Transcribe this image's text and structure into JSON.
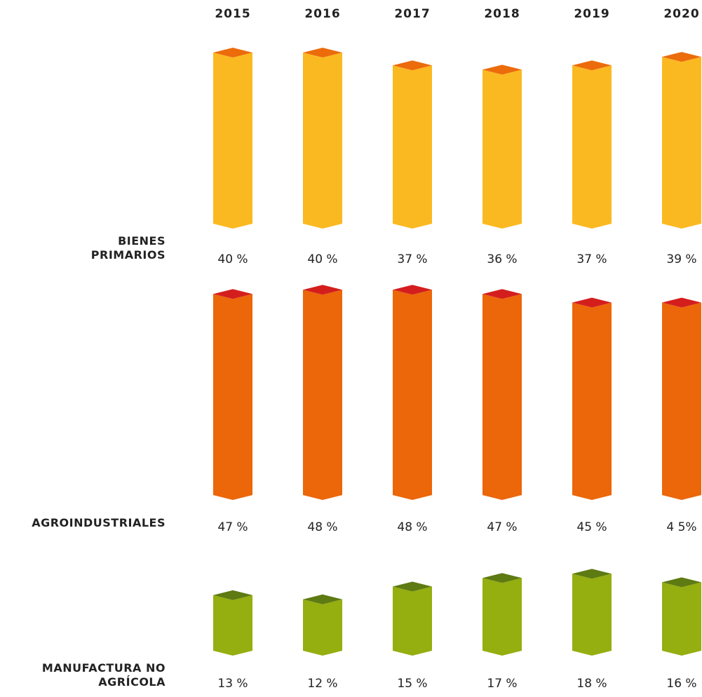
{
  "chart_data": {
    "type": "bar",
    "categories": [
      "2015",
      "2016",
      "2017",
      "2018",
      "2019",
      "2020"
    ],
    "series": [
      {
        "name": "BIENES PRIMARIOS",
        "color": "#fbb921",
        "top_color": "#ec6b0b",
        "values": [
          40,
          40,
          37,
          36,
          37,
          39
        ],
        "value_labels": [
          "40 %",
          "40 %",
          "37 %",
          "36 %",
          "37 %",
          "39 %"
        ]
      },
      {
        "name": "AGROINDUSTRIALES",
        "color": "#ec660a",
        "top_color": "#d41e1e",
        "values": [
          47,
          48,
          48,
          47,
          45,
          45
        ],
        "value_labels": [
          "47 %",
          "48 %",
          "48 %",
          "47 %",
          "45 %",
          "4 5%"
        ]
      },
      {
        "name": "MANUFACTURA NO AGRÍCOLA",
        "color": "#95ae10",
        "top_color": "#5e7a12",
        "values": [
          13,
          12,
          15,
          17,
          18,
          16
        ],
        "value_labels": [
          "13 %",
          "12 %",
          "15 %",
          "17 %",
          "18 %",
          "16 %"
        ]
      }
    ]
  }
}
